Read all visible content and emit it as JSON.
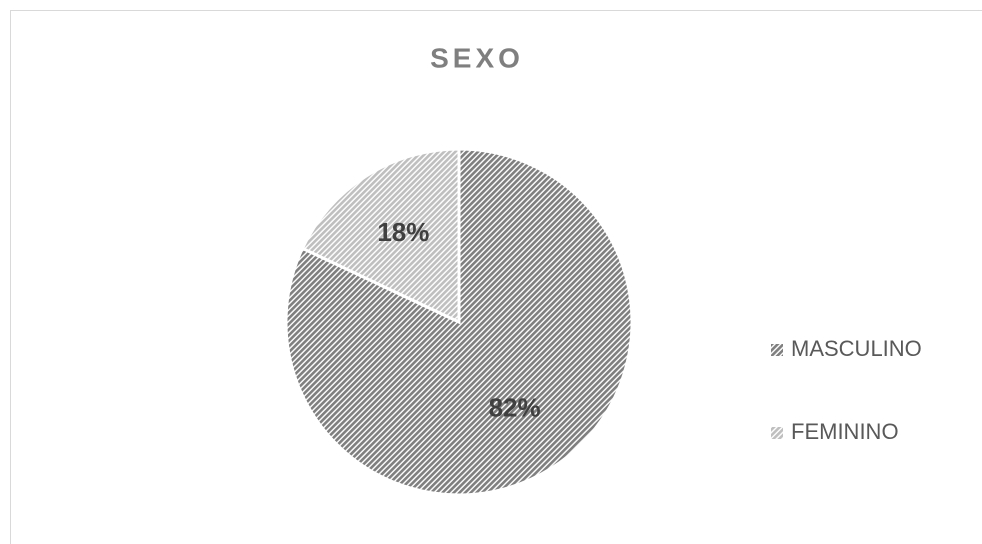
{
  "chart_data": {
    "type": "pie",
    "title": "SEXO",
    "categories": [
      "MASCULINO",
      "FEMININO"
    ],
    "values": [
      82,
      18
    ],
    "value_labels": [
      "82%",
      "18%"
    ],
    "colors": [
      "#7f7f7f",
      "#bfbfbf"
    ],
    "legend": "right"
  }
}
